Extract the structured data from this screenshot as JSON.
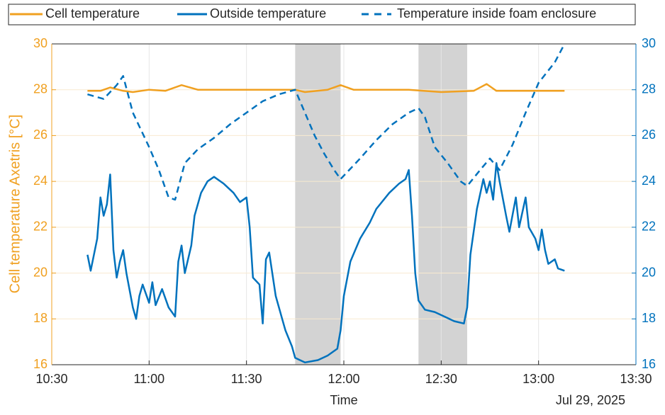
{
  "chart_data": {
    "type": "line",
    "ylabel": "Cell temperature Axetris [°C]",
    "xlabel": "Time",
    "date_label": "Jul 29, 2025",
    "xlim": [
      "10:30",
      "13:30"
    ],
    "xticks": [
      "10:30",
      "11:00",
      "11:30",
      "12:00",
      "12:30",
      "13:00",
      "13:30"
    ],
    "ylim": [
      16,
      30
    ],
    "yticks": [
      16,
      18,
      20,
      22,
      24,
      26,
      28,
      30
    ],
    "y2lim": [
      16,
      30
    ],
    "y2ticks": [
      16,
      18,
      20,
      22,
      24,
      26,
      28,
      30
    ],
    "grid": true,
    "shaded_regions": [
      [
        "11:45",
        "11:59"
      ],
      [
        "12:23",
        "12:38"
      ]
    ],
    "shade_color": "#d3d3d3",
    "series": [
      {
        "name": "Cell temperature",
        "color": "#f0a020",
        "style": "solid",
        "x": [
          "10:41",
          "10:45",
          "10:48",
          "10:52",
          "10:55",
          "11:00",
          "11:05",
          "11:10",
          "11:15",
          "11:30",
          "11:45",
          "11:48",
          "11:55",
          "11:59",
          "12:03",
          "12:20",
          "12:30",
          "12:40",
          "12:44",
          "12:47",
          "13:08"
        ],
        "values": [
          27.95,
          27.95,
          28.1,
          27.95,
          27.9,
          28.0,
          27.95,
          28.2,
          28.0,
          28.0,
          28.0,
          27.9,
          28.0,
          28.2,
          28.0,
          28.0,
          27.9,
          27.95,
          28.25,
          27.95,
          27.95
        ]
      },
      {
        "name": "Outside temperature",
        "color": "#0072bd",
        "style": "solid",
        "axis": "y2",
        "x": [
          "10:41",
          "10:42",
          "10:44",
          "10:45",
          "10:46",
          "10:47",
          "10:48",
          "10:49",
          "10:50",
          "10:51",
          "10:52",
          "10:53",
          "10:55",
          "10:56",
          "10:57",
          "10:58",
          "11:00",
          "11:01",
          "11:02",
          "11:04",
          "11:06",
          "11:08",
          "11:09",
          "11:10",
          "11:11",
          "11:13",
          "11:14",
          "11:16",
          "11:18",
          "11:20",
          "11:23",
          "11:26",
          "11:28",
          "11:30",
          "11:31",
          "11:32",
          "11:34",
          "11:35",
          "11:36",
          "11:37",
          "11:39",
          "11:41",
          "11:42",
          "11:44",
          "11:45",
          "11:48",
          "11:52",
          "11:55",
          "11:58",
          "11:59",
          "12:00",
          "12:02",
          "12:05",
          "12:08",
          "12:10",
          "12:14",
          "12:17",
          "12:19",
          "12:20",
          "12:21",
          "12:22",
          "12:23",
          "12:25",
          "12:28",
          "12:31",
          "12:34",
          "12:37",
          "12:38",
          "12:39",
          "12:41",
          "12:43",
          "12:44",
          "12:45",
          "12:46",
          "12:47",
          "12:48",
          "12:50",
          "12:51",
          "12:53",
          "12:54",
          "12:56",
          "12:57",
          "12:59",
          "13:00",
          "13:01",
          "13:02",
          "13:03",
          "13:05",
          "13:06",
          "13:08"
        ],
        "values": [
          20.8,
          20.1,
          21.5,
          23.3,
          22.5,
          23.0,
          24.3,
          21.0,
          19.8,
          20.5,
          21.0,
          20.0,
          18.5,
          18.0,
          19.0,
          19.5,
          18.7,
          19.6,
          18.6,
          19.3,
          18.5,
          18.1,
          20.5,
          21.2,
          20.0,
          21.2,
          22.5,
          23.5,
          24.0,
          24.2,
          23.9,
          23.5,
          23.1,
          23.3,
          22.0,
          19.8,
          19.5,
          17.8,
          20.6,
          20.9,
          19.0,
          18.0,
          17.5,
          16.8,
          16.3,
          16.1,
          16.2,
          16.4,
          16.7,
          17.5,
          19.0,
          20.5,
          21.5,
          22.2,
          22.8,
          23.5,
          23.9,
          24.1,
          24.5,
          22.5,
          20.0,
          18.8,
          18.4,
          18.3,
          18.1,
          17.9,
          17.8,
          18.5,
          20.8,
          22.8,
          24.1,
          23.5,
          24.0,
          23.2,
          24.8,
          24.0,
          22.5,
          21.8,
          23.3,
          22.0,
          23.3,
          22.0,
          21.5,
          21.0,
          21.9,
          21.0,
          20.4,
          20.6,
          20.2,
          20.1
        ]
      },
      {
        "name": "Temperature inside foam enclosure",
        "color": "#0072bd",
        "style": "dashed",
        "axis": "y2",
        "x": [
          "10:41",
          "10:46",
          "10:50",
          "10:52",
          "10:55",
          "11:00",
          "11:03",
          "11:06",
          "11:08",
          "11:11",
          "11:15",
          "11:20",
          "11:25",
          "11:30",
          "11:35",
          "11:40",
          "11:45",
          "11:48",
          "11:51",
          "11:54",
          "11:57",
          "11:59",
          "12:05",
          "12:10",
          "12:15",
          "12:20",
          "12:23",
          "12:25",
          "12:28",
          "12:32",
          "12:36",
          "12:38",
          "12:42",
          "12:45",
          "12:48",
          "12:52",
          "12:56",
          "13:00",
          "13:05",
          "13:08"
        ],
        "values": [
          27.8,
          27.6,
          28.2,
          28.6,
          27.0,
          25.5,
          24.5,
          23.3,
          23.2,
          24.8,
          25.4,
          25.9,
          26.5,
          27.0,
          27.5,
          27.8,
          28.0,
          27.0,
          26.0,
          25.2,
          24.5,
          24.1,
          25.0,
          25.8,
          26.5,
          27.0,
          27.2,
          26.8,
          25.5,
          24.8,
          24.0,
          23.8,
          24.5,
          25.0,
          24.5,
          25.6,
          27.0,
          28.3,
          29.2,
          30.0
        ]
      }
    ]
  }
}
